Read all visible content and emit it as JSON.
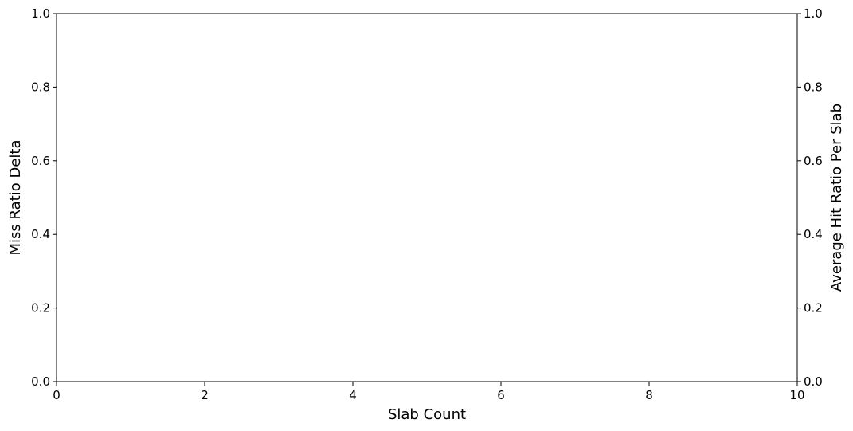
{
  "chart_data": {
    "type": "line",
    "title": "",
    "xlabel": "Slab Count",
    "ylabel": "Miss Ratio Delta",
    "y2label": "Average Hit Ratio Per Slab",
    "xlim": [
      0,
      10
    ],
    "ylim": [
      0,
      1
    ],
    "y2lim": [
      0,
      1
    ],
    "xticks": [
      "0",
      "2",
      "4",
      "6",
      "8",
      "10"
    ],
    "yticks": [
      "0.0",
      "0.2",
      "0.4",
      "0.6",
      "0.8",
      "1.0"
    ],
    "y2ticks": [
      "0.0",
      "0.2",
      "0.4",
      "0.6",
      "0.8",
      "1.0"
    ],
    "grid": false,
    "series": []
  }
}
